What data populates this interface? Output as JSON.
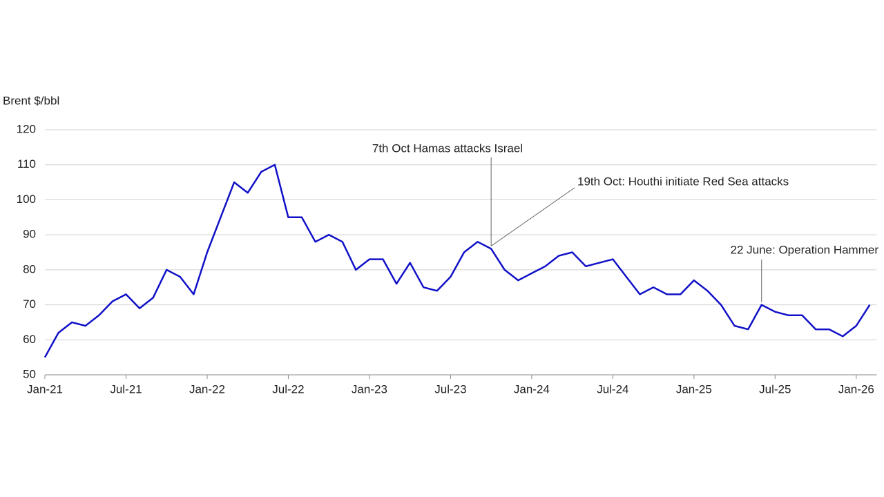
{
  "chart_data": {
    "type": "line",
    "y_label": "Brent $/bbl",
    "x": [
      "2021-01",
      "2021-02",
      "2021-03",
      "2021-04",
      "2021-05",
      "2021-06",
      "2021-07",
      "2021-08",
      "2021-09",
      "2021-10",
      "2021-11",
      "2021-12",
      "2022-01",
      "2022-02",
      "2022-03",
      "2022-04",
      "2022-05",
      "2022-06",
      "2022-07",
      "2022-08",
      "2022-09",
      "2022-10",
      "2022-11",
      "2022-12",
      "2023-01",
      "2023-02",
      "2023-03",
      "2023-04",
      "2023-05",
      "2023-06",
      "2023-07",
      "2023-08",
      "2023-09",
      "2023-10",
      "2023-11",
      "2023-12",
      "2024-01",
      "2024-02",
      "2024-03",
      "2024-04",
      "2024-05",
      "2024-06",
      "2024-07",
      "2024-08",
      "2024-09",
      "2024-10",
      "2024-11",
      "2024-12",
      "2025-01",
      "2025-02",
      "2025-03",
      "2025-04",
      "2025-05",
      "2025-06",
      "2025-07",
      "2025-08",
      "2025-09",
      "2025-10",
      "2025-11",
      "2025-12",
      "2026-01",
      "2026-02"
    ],
    "series": [
      {
        "name": "Brent",
        "color": "#1010c8",
        "values": [
          55,
          62,
          65,
          64,
          67,
          71,
          73,
          69,
          72,
          80,
          78,
          73,
          85,
          95,
          105,
          102,
          108,
          110,
          95,
          95,
          88,
          90,
          88,
          80,
          83,
          83,
          76,
          82,
          75,
          74,
          78,
          85,
          88,
          86,
          80,
          77,
          79,
          81,
          84,
          85,
          81,
          82,
          83,
          78,
          73,
          75,
          73,
          73,
          77,
          74,
          70,
          64,
          63,
          70,
          68,
          67,
          67,
          63,
          63,
          61,
          64,
          70
        ]
      }
    ],
    "ylim": [
      50,
      120
    ],
    "yticks": [
      50,
      60,
      70,
      80,
      90,
      100,
      110,
      120
    ],
    "xticks": [
      {
        "value": "2021-01",
        "label": "Jan-21"
      },
      {
        "value": "2021-07",
        "label": "Jul-21"
      },
      {
        "value": "2022-01",
        "label": "Jan-22"
      },
      {
        "value": "2022-07",
        "label": "Jul-22"
      },
      {
        "value": "2023-01",
        "label": "Jan-23"
      },
      {
        "value": "2023-07",
        "label": "Jul-23"
      },
      {
        "value": "2024-01",
        "label": "Jan-24"
      },
      {
        "value": "2024-07",
        "label": "Jul-24"
      },
      {
        "value": "2025-01",
        "label": "Jan-25"
      },
      {
        "value": "2025-07",
        "label": "Jul-25"
      },
      {
        "value": "2026-01",
        "label": "Jan-26"
      }
    ],
    "grid": true,
    "annotations": [
      {
        "text": "7th Oct Hamas attacks Israel",
        "x": "2023-10"
      },
      {
        "text": "19th Oct: Houthi initiate Red Sea attacks",
        "x": "2023-10"
      },
      {
        "text": "22 June: Operation Hammer",
        "x": "2025-06"
      }
    ]
  }
}
